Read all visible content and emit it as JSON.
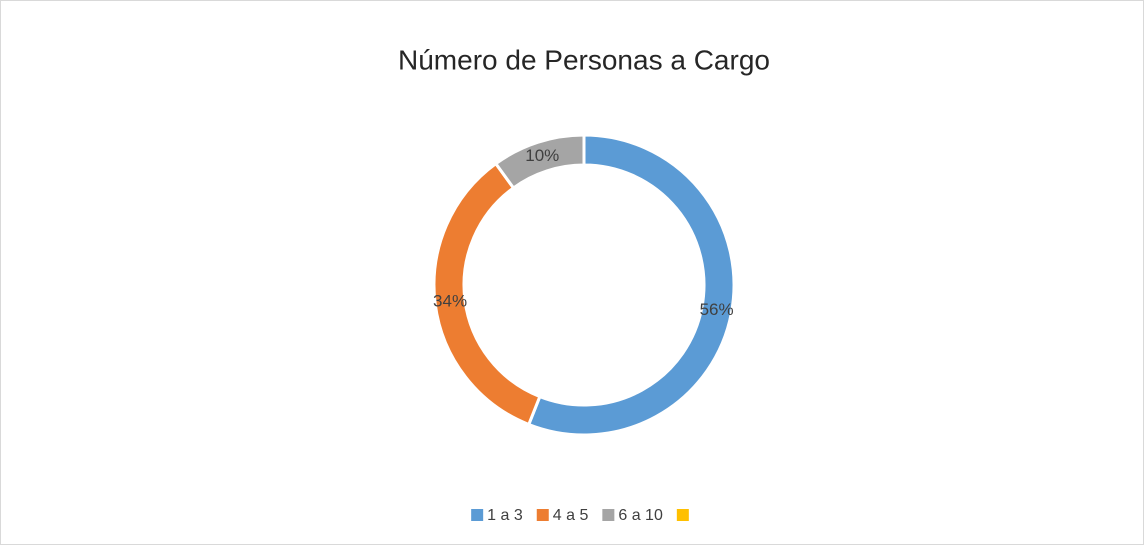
{
  "chart_data": {
    "type": "donut",
    "title": "Número de Personas a Cargo",
    "categories": [
      "1 a 3",
      "4 a 5",
      "6 a 10",
      null
    ],
    "values": [
      56,
      34,
      10,
      0
    ],
    "value_labels": [
      "56%",
      "34%",
      "10%",
      null
    ],
    "colors": [
      "#5b9bd5",
      "#ed7d31",
      "#a5a5a5",
      "#ffc000"
    ],
    "legend": "bottom"
  }
}
